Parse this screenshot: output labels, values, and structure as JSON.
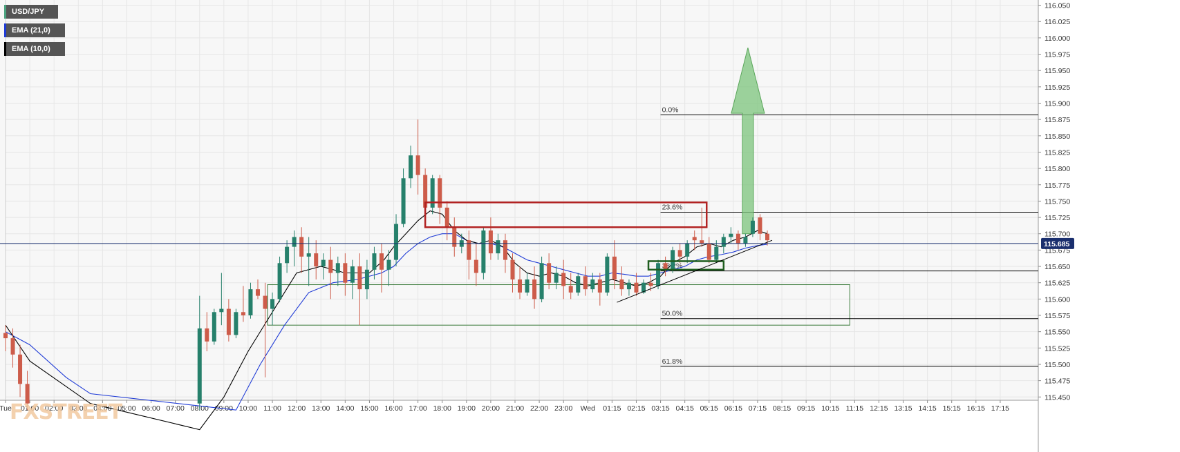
{
  "legend": {
    "symbol": "USD/JPY",
    "ema21": "EMA (21,0)",
    "ema10": "EMA (10,0)"
  },
  "logo": "FXSTREET",
  "chart_data": {
    "type": "candlestick",
    "symbol": "USD/JPY",
    "y_ticks": [
      "116.050",
      "116.025",
      "116.000",
      "115.975",
      "115.950",
      "115.925",
      "115.900",
      "115.875",
      "115.850",
      "115.825",
      "115.800",
      "115.775",
      "115.750",
      "115.725",
      "115.700",
      "115.675",
      "115.650",
      "115.625",
      "115.600",
      "115.575",
      "115.550",
      "115.525",
      "115.500",
      "115.475",
      "115.450"
    ],
    "ylim": [
      115.445,
      116.058
    ],
    "x_ticks": [
      "Tue",
      "01:00",
      "02:00",
      "03:00",
      "04:00",
      "05:00",
      "06:00",
      "07:00",
      "08:00",
      "09:00",
      "10:00",
      "11:00",
      "12:00",
      "13:00",
      "14:00",
      "15:00",
      "16:00",
      "17:00",
      "18:00",
      "19:00",
      "20:00",
      "21:00",
      "22:00",
      "23:00",
      "Wed",
      "01:15",
      "02:15",
      "03:15",
      "04:15",
      "05:15",
      "06:15",
      "07:15",
      "08:15",
      "09:15",
      "10:15",
      "11:15",
      "12:15",
      "13:15",
      "14:15",
      "15:15",
      "16:15",
      "17:15"
    ],
    "x_range": [
      0,
      42
    ],
    "current_price": "115.685",
    "current_price_value": 115.685,
    "candles": [
      {
        "t": 0.0,
        "o": 115.548,
        "h": 115.56,
        "c": 115.54,
        "l": 115.52
      },
      {
        "t": 0.3,
        "o": 115.54,
        "h": 115.555,
        "c": 115.515,
        "l": 115.495
      },
      {
        "t": 0.6,
        "o": 115.515,
        "h": 115.53,
        "c": 115.47,
        "l": 115.45
      },
      {
        "t": 0.9,
        "o": 115.47,
        "h": 115.49,
        "c": 115.44,
        "l": 115.43
      },
      {
        "t": 8.0,
        "o": 115.44,
        "h": 115.605,
        "c": 115.555,
        "l": 115.43
      },
      {
        "t": 8.3,
        "o": 115.555,
        "h": 115.58,
        "c": 115.535,
        "l": 115.52
      },
      {
        "t": 8.6,
        "o": 115.535,
        "h": 115.585,
        "c": 115.58,
        "l": 115.53
      },
      {
        "t": 8.9,
        "o": 115.58,
        "h": 115.64,
        "c": 115.585,
        "l": 115.56
      },
      {
        "t": 9.2,
        "o": 115.585,
        "h": 115.6,
        "c": 115.545,
        "l": 115.535
      },
      {
        "t": 9.5,
        "o": 115.545,
        "h": 115.585,
        "c": 115.58,
        "l": 115.54
      },
      {
        "t": 9.8,
        "o": 115.58,
        "h": 115.62,
        "c": 115.575,
        "l": 115.565
      },
      {
        "t": 10.1,
        "o": 115.575,
        "h": 115.625,
        "c": 115.615,
        "l": 115.57
      },
      {
        "t": 10.4,
        "o": 115.615,
        "h": 115.63,
        "c": 115.605,
        "l": 115.6
      },
      {
        "t": 10.7,
        "o": 115.605,
        "h": 115.625,
        "c": 115.585,
        "l": 115.48
      },
      {
        "t": 11.0,
        "o": 115.585,
        "h": 115.61,
        "c": 115.6,
        "l": 115.56
      },
      {
        "t": 11.3,
        "o": 115.6,
        "h": 115.665,
        "c": 115.655,
        "l": 115.595
      },
      {
        "t": 11.6,
        "o": 115.655,
        "h": 115.69,
        "c": 115.68,
        "l": 115.64
      },
      {
        "t": 11.9,
        "o": 115.68,
        "h": 115.705,
        "c": 115.695,
        "l": 115.65
      },
      {
        "t": 12.2,
        "o": 115.695,
        "h": 115.71,
        "c": 115.665,
        "l": 115.64
      },
      {
        "t": 12.5,
        "o": 115.665,
        "h": 115.695,
        "c": 115.67,
        "l": 115.62
      },
      {
        "t": 12.8,
        "o": 115.67,
        "h": 115.69,
        "c": 115.65,
        "l": 115.63
      },
      {
        "t": 13.1,
        "o": 115.65,
        "h": 115.67,
        "c": 115.66,
        "l": 115.63
      },
      {
        "t": 13.4,
        "o": 115.66,
        "h": 115.68,
        "c": 115.64,
        "l": 115.6
      },
      {
        "t": 13.7,
        "o": 115.64,
        "h": 115.665,
        "c": 115.655,
        "l": 115.62
      },
      {
        "t": 14.0,
        "o": 115.655,
        "h": 115.67,
        "c": 115.625,
        "l": 115.605
      },
      {
        "t": 14.3,
        "o": 115.625,
        "h": 115.66,
        "c": 115.65,
        "l": 115.6
      },
      {
        "t": 14.6,
        "o": 115.65,
        "h": 115.67,
        "c": 115.615,
        "l": 115.56
      },
      {
        "t": 14.9,
        "o": 115.615,
        "h": 115.66,
        "c": 115.645,
        "l": 115.6
      },
      {
        "t": 15.2,
        "o": 115.645,
        "h": 115.68,
        "c": 115.67,
        "l": 115.63
      },
      {
        "t": 15.5,
        "o": 115.67,
        "h": 115.685,
        "c": 115.645,
        "l": 115.61
      },
      {
        "t": 15.8,
        "o": 115.645,
        "h": 115.675,
        "c": 115.66,
        "l": 115.62
      },
      {
        "t": 16.1,
        "o": 115.66,
        "h": 115.73,
        "c": 115.715,
        "l": 115.65
      },
      {
        "t": 16.4,
        "o": 115.715,
        "h": 115.8,
        "c": 115.785,
        "l": 115.71
      },
      {
        "t": 16.7,
        "o": 115.785,
        "h": 115.835,
        "c": 115.82,
        "l": 115.77
      },
      {
        "t": 17.0,
        "o": 115.82,
        "h": 115.875,
        "c": 115.79,
        "l": 115.76
      },
      {
        "t": 17.3,
        "o": 115.79,
        "h": 115.8,
        "c": 115.74,
        "l": 115.72
      },
      {
        "t": 17.6,
        "o": 115.74,
        "h": 115.79,
        "c": 115.785,
        "l": 115.73
      },
      {
        "t": 17.9,
        "o": 115.785,
        "h": 115.79,
        "c": 115.74,
        "l": 115.715
      },
      {
        "t": 18.2,
        "o": 115.74,
        "h": 115.75,
        "c": 115.71,
        "l": 115.69
      },
      {
        "t": 18.5,
        "o": 115.71,
        "h": 115.725,
        "c": 115.68,
        "l": 115.665
      },
      {
        "t": 18.8,
        "o": 115.68,
        "h": 115.7,
        "c": 115.69,
        "l": 115.67
      },
      {
        "t": 19.1,
        "o": 115.69,
        "h": 115.705,
        "c": 115.66,
        "l": 115.63
      },
      {
        "t": 19.4,
        "o": 115.66,
        "h": 115.685,
        "c": 115.64,
        "l": 115.62
      },
      {
        "t": 19.7,
        "o": 115.64,
        "h": 115.71,
        "c": 115.705,
        "l": 115.63
      },
      {
        "t": 20.0,
        "o": 115.705,
        "h": 115.725,
        "c": 115.67,
        "l": 115.66
      },
      {
        "t": 20.3,
        "o": 115.67,
        "h": 115.7,
        "c": 115.69,
        "l": 115.66
      },
      {
        "t": 20.6,
        "o": 115.69,
        "h": 115.7,
        "c": 115.66,
        "l": 115.64
      },
      {
        "t": 20.9,
        "o": 115.66,
        "h": 115.67,
        "c": 115.63,
        "l": 115.61
      },
      {
        "t": 21.2,
        "o": 115.63,
        "h": 115.65,
        "c": 115.61,
        "l": 115.6
      },
      {
        "t": 21.5,
        "o": 115.61,
        "h": 115.64,
        "c": 115.63,
        "l": 115.605
      },
      {
        "t": 21.8,
        "o": 115.63,
        "h": 115.65,
        "c": 115.6,
        "l": 115.585
      },
      {
        "t": 22.1,
        "o": 115.6,
        "h": 115.665,
        "c": 115.655,
        "l": 115.595
      },
      {
        "t": 22.4,
        "o": 115.655,
        "h": 115.67,
        "c": 115.625,
        "l": 115.615
      },
      {
        "t": 22.7,
        "o": 115.625,
        "h": 115.65,
        "c": 115.64,
        "l": 115.615
      },
      {
        "t": 23.0,
        "o": 115.64,
        "h": 115.66,
        "c": 115.62,
        "l": 115.6
      },
      {
        "t": 23.3,
        "o": 115.62,
        "h": 115.64,
        "c": 115.61,
        "l": 115.6
      },
      {
        "t": 23.6,
        "o": 115.61,
        "h": 115.64,
        "c": 115.635,
        "l": 115.605
      },
      {
        "t": 23.9,
        "o": 115.635,
        "h": 115.65,
        "c": 115.615,
        "l": 115.605
      },
      {
        "t": 24.2,
        "o": 115.615,
        "h": 115.64,
        "c": 115.63,
        "l": 115.61
      },
      {
        "t": 24.5,
        "o": 115.63,
        "h": 115.64,
        "c": 115.61,
        "l": 115.59
      },
      {
        "t": 24.8,
        "o": 115.61,
        "h": 115.67,
        "c": 115.665,
        "l": 115.605
      },
      {
        "t": 25.1,
        "o": 115.665,
        "h": 115.69,
        "c": 115.63,
        "l": 115.615
      },
      {
        "t": 25.4,
        "o": 115.63,
        "h": 115.65,
        "c": 115.615,
        "l": 115.605
      },
      {
        "t": 25.7,
        "o": 115.615,
        "h": 115.63,
        "c": 115.625,
        "l": 115.605
      },
      {
        "t": 26.0,
        "o": 115.625,
        "h": 115.64,
        "c": 115.61,
        "l": 115.605
      },
      {
        "t": 26.3,
        "o": 115.61,
        "h": 115.63,
        "c": 115.625,
        "l": 115.608
      },
      {
        "t": 26.6,
        "o": 115.625,
        "h": 115.64,
        "c": 115.62,
        "l": 115.612
      },
      {
        "t": 26.9,
        "o": 115.62,
        "h": 115.66,
        "c": 115.655,
        "l": 115.615
      },
      {
        "t": 27.2,
        "o": 115.655,
        "h": 115.665,
        "c": 115.645,
        "l": 115.635
      },
      {
        "t": 27.5,
        "o": 115.645,
        "h": 115.68,
        "c": 115.675,
        "l": 115.64
      },
      {
        "t": 27.8,
        "o": 115.675,
        "h": 115.685,
        "c": 115.665,
        "l": 115.655
      },
      {
        "t": 28.1,
        "o": 115.665,
        "h": 115.69,
        "c": 115.685,
        "l": 115.655
      },
      {
        "t": 28.4,
        "o": 115.695,
        "h": 115.705,
        "c": 115.69,
        "l": 115.675
      },
      {
        "t": 28.7,
        "o": 115.69,
        "h": 115.74,
        "c": 115.685,
        "l": 115.68
      },
      {
        "t": 29.0,
        "o": 115.685,
        "h": 115.695,
        "c": 115.66,
        "l": 115.655
      },
      {
        "t": 29.3,
        "o": 115.66,
        "h": 115.69,
        "c": 115.68,
        "l": 115.655
      },
      {
        "t": 29.6,
        "o": 115.68,
        "h": 115.7,
        "c": 115.695,
        "l": 115.67
      },
      {
        "t": 29.9,
        "o": 115.695,
        "h": 115.71,
        "c": 115.7,
        "l": 115.685
      },
      {
        "t": 30.2,
        "o": 115.7,
        "h": 115.705,
        "c": 115.685,
        "l": 115.675
      },
      {
        "t": 30.5,
        "o": 115.685,
        "h": 115.7,
        "c": 115.695,
        "l": 115.68
      },
      {
        "t": 30.8,
        "o": 115.7,
        "h": 115.725,
        "c": 115.72,
        "l": 115.695
      },
      {
        "t": 31.1,
        "o": 115.725,
        "h": 115.73,
        "c": 115.7,
        "l": 115.69
      },
      {
        "t": 31.4,
        "o": 115.7,
        "h": 115.705,
        "c": 115.69,
        "l": 115.682
      }
    ],
    "ema10": [
      [
        0,
        115.56
      ],
      [
        1.0,
        115.505
      ],
      [
        3.5,
        115.44
      ],
      [
        8.0,
        115.4
      ],
      [
        9.0,
        115.45
      ],
      [
        10.0,
        115.52
      ],
      [
        11.0,
        115.58
      ],
      [
        12.0,
        115.64
      ],
      [
        13.0,
        115.65
      ],
      [
        14.0,
        115.64
      ],
      [
        15.0,
        115.64
      ],
      [
        15.6,
        115.66
      ],
      [
        16.0,
        115.68
      ],
      [
        16.5,
        115.7
      ],
      [
        17.0,
        115.72
      ],
      [
        17.5,
        115.735
      ],
      [
        18.0,
        115.73
      ],
      [
        18.5,
        115.705
      ],
      [
        19.0,
        115.69
      ],
      [
        19.5,
        115.685
      ],
      [
        20.0,
        115.69
      ],
      [
        20.5,
        115.68
      ],
      [
        21.0,
        115.655
      ],
      [
        21.5,
        115.64
      ],
      [
        22.0,
        115.635
      ],
      [
        22.5,
        115.64
      ],
      [
        23.0,
        115.635
      ],
      [
        23.5,
        115.625
      ],
      [
        24.0,
        115.62
      ],
      [
        24.5,
        115.625
      ],
      [
        25.0,
        115.63
      ],
      [
        25.5,
        115.625
      ],
      [
        26.0,
        115.62
      ],
      [
        26.5,
        115.625
      ],
      [
        27.0,
        115.635
      ],
      [
        27.5,
        115.655
      ],
      [
        28.0,
        115.665
      ],
      [
        28.5,
        115.68
      ],
      [
        29.0,
        115.685
      ],
      [
        29.5,
        115.68
      ],
      [
        30.0,
        115.69
      ],
      [
        30.5,
        115.695
      ],
      [
        31.0,
        115.705
      ],
      [
        31.4,
        115.7
      ]
    ],
    "ema21": [
      [
        0,
        115.55
      ],
      [
        1.0,
        115.53
      ],
      [
        2.5,
        115.48
      ],
      [
        3.5,
        115.455
      ],
      [
        9.5,
        115.43
      ],
      [
        10.5,
        115.5
      ],
      [
        11.5,
        115.56
      ],
      [
        12.5,
        115.61
      ],
      [
        13.5,
        115.625
      ],
      [
        14.5,
        115.63
      ],
      [
        15.5,
        115.64
      ],
      [
        16.0,
        115.65
      ],
      [
        16.5,
        115.67
      ],
      [
        17.0,
        115.685
      ],
      [
        17.5,
        115.695
      ],
      [
        18.0,
        115.7
      ],
      [
        18.5,
        115.7
      ],
      [
        19.0,
        115.69
      ],
      [
        19.5,
        115.685
      ],
      [
        20.0,
        115.685
      ],
      [
        20.5,
        115.68
      ],
      [
        21.0,
        115.67
      ],
      [
        21.5,
        115.66
      ],
      [
        22.0,
        115.655
      ],
      [
        22.5,
        115.65
      ],
      [
        23.0,
        115.645
      ],
      [
        23.5,
        115.64
      ],
      [
        24.0,
        115.635
      ],
      [
        24.5,
        115.635
      ],
      [
        25.0,
        115.64
      ],
      [
        25.5,
        115.638
      ],
      [
        26.0,
        115.635
      ],
      [
        26.5,
        115.635
      ],
      [
        27.0,
        115.64
      ],
      [
        27.5,
        115.645
      ],
      [
        28.0,
        115.65
      ],
      [
        28.5,
        115.66
      ],
      [
        29.0,
        115.665
      ],
      [
        29.5,
        115.668
      ],
      [
        30.0,
        115.672
      ],
      [
        30.5,
        115.678
      ],
      [
        31.0,
        115.682
      ],
      [
        31.4,
        115.684
      ]
    ],
    "fibonacci": [
      {
        "label": "0.0%",
        "value": 115.882
      },
      {
        "label": "23.6%",
        "value": 115.733
      },
      {
        "label": "38.2%",
        "value": 115.643
      },
      {
        "label": "50.0%",
        "value": 115.57
      },
      {
        "label": "61.8%",
        "value": 115.497
      }
    ],
    "annotations": {
      "red_resistance_box": {
        "t0": 17.3,
        "t1": 28.9,
        "top": 115.748,
        "bottom": 115.71,
        "color": "#b22222"
      },
      "green_support_box": {
        "t0": 10.8,
        "t1": 34.8,
        "top": 115.622,
        "bottom": 115.56,
        "color": "#3a7a3a"
      },
      "small_support_box": {
        "t0": 26.5,
        "t1": 29.6,
        "top": 115.658,
        "bottom": 115.645,
        "color": "#1f5e1f"
      },
      "trendline": [
        [
          25.2,
          115.595
        ],
        [
          31.6,
          115.69
        ]
      ],
      "up_arrow": {
        "t": 30.6,
        "from": 115.7,
        "to": 115.985,
        "color": "#7cc47c"
      }
    },
    "colors": {
      "up": "#26806b",
      "down": "#cd5c4a",
      "ema10": "#000000",
      "ema21": "#1f3bd6",
      "price_line": "#1a2f6e",
      "price_badge": "#1a2f6e"
    }
  }
}
